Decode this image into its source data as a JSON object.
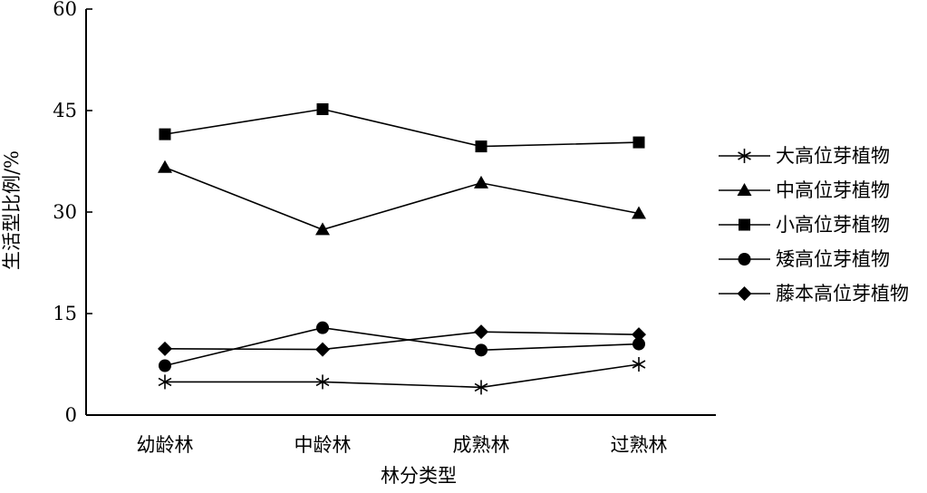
{
  "chart_data": {
    "type": "line",
    "title": "",
    "xlabel": "林分类型",
    "ylabel": "生活型比例/%",
    "categories": [
      "幼龄林",
      "中龄林",
      "成熟林",
      "过熟林"
    ],
    "ylim": [
      0,
      60
    ],
    "yticks": [
      0,
      15,
      30,
      45,
      60
    ],
    "grid": false,
    "legend_position": "right",
    "series": [
      {
        "name": "大高位芽植物",
        "marker": "asterisk",
        "color": "#000000",
        "values": [
          4.9,
          4.9,
          4.1,
          7.5
        ]
      },
      {
        "name": "中高位芽植物",
        "marker": "triangle",
        "color": "#000000",
        "values": [
          36.6,
          27.4,
          34.3,
          29.8
        ]
      },
      {
        "name": "小高位芽植物",
        "marker": "square",
        "color": "#000000",
        "values": [
          41.5,
          45.2,
          39.7,
          40.3
        ]
      },
      {
        "name": "矮高位芽植物",
        "marker": "circle",
        "color": "#000000",
        "values": [
          7.3,
          12.9,
          9.6,
          10.5
        ]
      },
      {
        "name": "藤本高位芽植物",
        "marker": "diamond",
        "color": "#000000",
        "values": [
          9.8,
          9.7,
          12.3,
          11.9
        ]
      }
    ]
  }
}
